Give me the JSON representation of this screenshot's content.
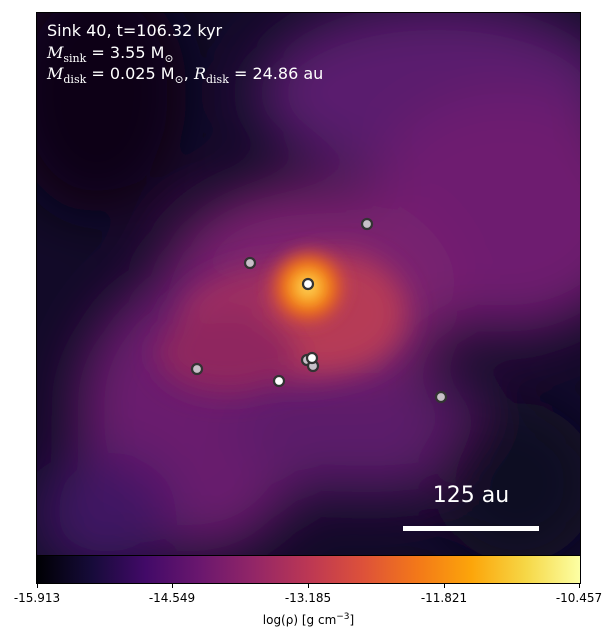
{
  "panel": {
    "line1": "Sink 40, t=106.32 kyr",
    "msink_symbol": "M",
    "msink_sub": "sink",
    "msink_value": " = 3.55 M",
    "msink_unit_sub": "⊙",
    "mdisk_symbol": "M",
    "mdisk_sub": "disk",
    "mdisk_value": " = 0.025 M",
    "mdisk_unit_sub": "⊙",
    "rdisk_sep": ",  ",
    "rdisk_symbol": "R",
    "rdisk_sub": "disk",
    "rdisk_value": " = 24.86 au",
    "scalebar": "125 au"
  },
  "colormap": "inferno",
  "colorbar": {
    "ticks": [
      "-15.913",
      "-14.549",
      "-13.185",
      "-11.821",
      "-10.457"
    ],
    "label_prefix": "log(ρ) [g cm",
    "label_sup": "−3",
    "label_suffix": "]"
  },
  "colors": {
    "sink_main": "#ffffff",
    "sink_other": "#c8c0c8",
    "sink_edge": "#333333"
  }
}
